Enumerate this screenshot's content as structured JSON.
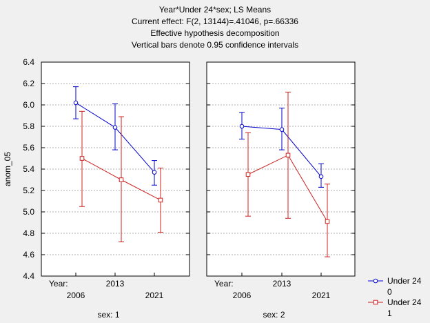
{
  "chart_data": {
    "type": "line",
    "title": "Year*Under 24*sex; LS Means",
    "subtitle_lines": [
      "Current effect: F(2, 13144)=.41046, p=.66336",
      "Effective hypothesis decomposition",
      "Vertical bars denote 0.95 confidence intervals"
    ],
    "ylabel": "anom_05",
    "ylim": [
      4.4,
      6.4
    ],
    "yticks": [
      "4.4",
      "4.6",
      "4.8",
      "5.0",
      "5.2",
      "5.4",
      "5.6",
      "5.8",
      "6.0",
      "6.2",
      "6.4"
    ],
    "grid": true,
    "x_label_prefix": "Year:",
    "categories": [
      "2006",
      "2013",
      "2021"
    ],
    "legend": {
      "position": "bottom-right",
      "entries": [
        {
          "label": "Under 24",
          "sublabel": "0",
          "color": "#0000cc",
          "marker": "circle"
        },
        {
          "label": "Under 24",
          "sublabel": "1",
          "color": "#cc2020",
          "marker": "square"
        }
      ]
    },
    "panels": [
      {
        "label": "sex: 1",
        "series": [
          {
            "means": [
              6.02,
              5.79,
              5.37
            ],
            "lower": [
              5.87,
              5.58,
              5.25
            ],
            "upper": [
              6.17,
              6.01,
              5.48
            ]
          },
          {
            "means": [
              5.5,
              5.3,
              5.11
            ],
            "lower": [
              5.05,
              4.72,
              4.81
            ],
            "upper": [
              5.94,
              5.89,
              5.41
            ]
          }
        ]
      },
      {
        "label": "sex: 2",
        "series": [
          {
            "means": [
              5.8,
              5.77,
              5.33
            ],
            "lower": [
              5.68,
              5.58,
              5.23
            ],
            "upper": [
              5.93,
              5.97,
              5.45
            ]
          },
          {
            "means": [
              5.35,
              5.53,
              4.91
            ],
            "lower": [
              4.96,
              4.94,
              4.58
            ],
            "upper": [
              5.74,
              6.12,
              5.26
            ]
          }
        ]
      }
    ]
  }
}
